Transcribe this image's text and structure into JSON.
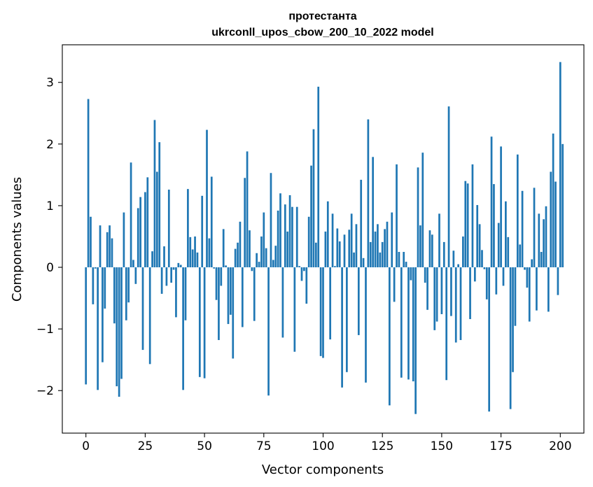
{
  "chart_data": {
    "type": "bar",
    "title": "протестанта",
    "subtitle": "ukrconll_upos_cbow_200_10_2022 model",
    "xlabel": "Vector components",
    "ylabel": "Components values",
    "xlim": [
      -9.95,
      209.95
    ],
    "ylim": [
      -2.69,
      3.61
    ],
    "xticks": [
      0,
      25,
      50,
      75,
      100,
      125,
      150,
      175,
      200
    ],
    "yticks": [
      -2,
      -1,
      0,
      1,
      2,
      3
    ],
    "ytick_labels": [
      "−2",
      "−1",
      "0",
      "1",
      "2",
      "3"
    ],
    "grid": false,
    "bar_color": "#1f77b4",
    "values": [
      -1.9,
      2.73,
      0.82,
      -0.6,
      -0.02,
      -1.99,
      0.68,
      -1.54,
      -0.67,
      0.57,
      0.68,
      0.47,
      -0.91,
      -1.93,
      -2.1,
      -1.81,
      0.89,
      -0.86,
      -0.57,
      1.7,
      0.12,
      -0.27,
      0.96,
      1.14,
      -1.34,
      1.22,
      1.46,
      -1.57,
      0.26,
      2.39,
      1.55,
      2.03,
      -0.43,
      0.34,
      -0.3,
      1.26,
      -0.25,
      -0.04,
      -0.81,
      0.07,
      0.04,
      -1.99,
      -0.86,
      1.27,
      0.49,
      0.29,
      0.5,
      0.24,
      -1.78,
      1.16,
      -1.8,
      2.23,
      0.47,
      1.47,
      -0.02,
      -0.53,
      -1.18,
      -0.3,
      0.62,
      0.03,
      -0.92,
      -0.77,
      -1.48,
      0.3,
      0.4,
      0.74,
      -0.97,
      1.45,
      1.88,
      0.6,
      -0.06,
      -0.87,
      0.23,
      0.09,
      0.5,
      0.89,
      0.31,
      -2.08,
      1.53,
      0.12,
      0.35,
      0.92,
      1.2,
      -1.14,
      1.02,
      0.58,
      1.17,
      0.98,
      -1.37,
      0.98,
      0.02,
      -0.22,
      -0.06,
      -0.59,
      0.82,
      1.65,
      2.24,
      0.4,
      2.93,
      -1.44,
      -1.47,
      0.58,
      1.07,
      -1.17,
      0.87,
      0.02,
      0.63,
      0.42,
      -1.95,
      0.53,
      -1.7,
      0.61,
      0.87,
      0.24,
      0.7,
      -1.1,
      1.42,
      0.15,
      -1.87,
      2.4,
      0.41,
      1.79,
      0.58,
      0.7,
      0.24,
      0.41,
      0.62,
      0.74,
      -2.24,
      0.89,
      -0.56,
      1.67,
      0.25,
      -1.79,
      0.25,
      0.09,
      -1.82,
      -0.21,
      -1.85,
      -2.38,
      1.62,
      0.68,
      1.86,
      -0.25,
      -0.69,
      0.6,
      0.53,
      -1.02,
      -0.88,
      0.87,
      -0.76,
      0.41,
      -1.83,
      2.61,
      -0.79,
      0.27,
      -1.22,
      0.05,
      -1.18,
      0.5,
      1.4,
      1.36,
      -0.84,
      1.67,
      -0.23,
      1.01,
      0.7,
      0.28,
      -0.03,
      -0.52,
      -2.34,
      2.12,
      1.35,
      -0.44,
      0.72,
      1.96,
      -0.3,
      1.07,
      0.49,
      -2.3,
      -1.7,
      -0.95,
      1.83,
      0.37,
      1.24,
      -0.04,
      -0.33,
      -0.88,
      0.13,
      1.29,
      -0.7,
      0.87,
      0.25,
      0.78,
      0.99,
      -0.72,
      1.55,
      2.17,
      1.39,
      -0.45,
      3.33,
      2.0
    ]
  }
}
